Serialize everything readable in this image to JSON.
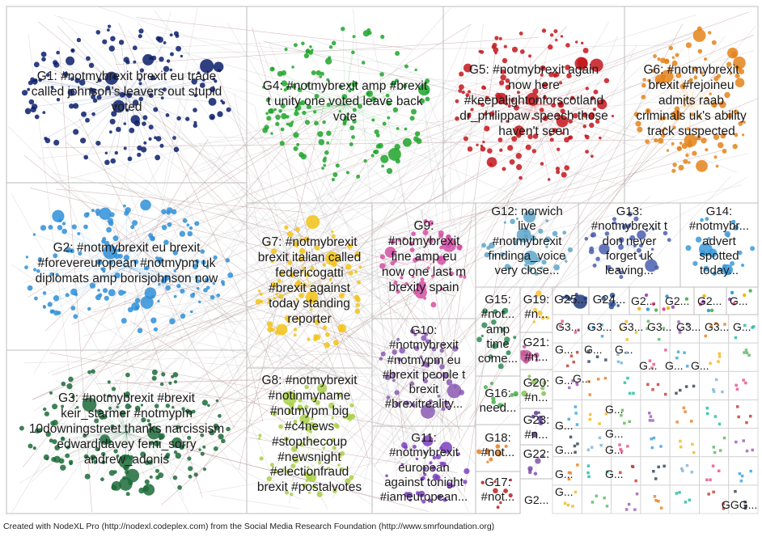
{
  "footer": "Created with NodeXL Pro (http://nodexl.codeplex.com) from the Social Media Research Foundation (http://www.smrfoundation.org)",
  "groups": [
    {
      "id": "G1",
      "label_lines": [
        "G1: #notmybrexit brexit eu trade",
        "called johnson's leavers out stupid",
        "voted"
      ],
      "color": "#0b1f6b"
    },
    {
      "id": "G2",
      "label_lines": [
        "G2: #notmybrexit eu brexit",
        "#forevereuropean #notmypm uk",
        "diplomats amp borisjohnson now"
      ],
      "color": "#2f8fd8"
    },
    {
      "id": "G3",
      "label_lines": [
        "G3: #notmybrexit #brexit",
        "keir_starmer #notmypm",
        "10downingstreet thanks narcissism",
        "edwardjdavey femi_sorry",
        "andrew_adonis"
      ],
      "color": "#1d6b3a"
    },
    {
      "id": "G4",
      "label_lines": [
        "G4: #notmybrexit amp #brexit",
        "t unity one voted leave back",
        "vote"
      ],
      "color": "#1fa52a"
    },
    {
      "id": "G5",
      "label_lines": [
        "G5: #notmybrexit again",
        "now here",
        "#keepalightonforscotland",
        "dr_philippaw speech those",
        "haven't seen"
      ],
      "color": "#c4161c"
    },
    {
      "id": "G6",
      "label_lines": [
        "G6: #notmybrexit",
        "brexit #rejoineu",
        "admits raab",
        "criminals uk's ability",
        "track suspected"
      ],
      "color": "#e5831a"
    },
    {
      "id": "G7",
      "label_lines": [
        "G7: #notmybrexit",
        "brexit italian called",
        "federicogatti",
        "#brexit against",
        "today standing",
        "reporter"
      ],
      "color": "#f2c318"
    },
    {
      "id": "G8",
      "label_lines": [
        "G8: #notmybrexit",
        "#notinmyname",
        "#notmypm big",
        "#c4news",
        "#stopthecoup",
        "#newsnight",
        "#electionfraud",
        "brexit #postalvotes"
      ],
      "color": "#a8d048"
    },
    {
      "id": "G9",
      "label_lines": [
        "G9:",
        "#notmybrexit",
        "fine amp eu",
        "now one last m",
        "brexity spain"
      ],
      "color": "#d64fa6"
    },
    {
      "id": "G10",
      "label_lines": [
        "G10:",
        "#notmybrexit",
        "#notmypm eu",
        "#brexit people t",
        "brexit",
        "#brexitreality..."
      ],
      "color": "#8a5ab3"
    },
    {
      "id": "G11",
      "label_lines": [
        "G11:",
        "#notmybrexit",
        "european",
        "against tonight",
        "#iameuropean..."
      ],
      "color": "#7b3fbf"
    },
    {
      "id": "G12",
      "label_lines": [
        "G12: norwich",
        "live",
        "#notmybrexit",
        "findinga_voice",
        "very close..."
      ],
      "color": "#5fa6c9"
    },
    {
      "id": "G13",
      "label_lines": [
        "G13:",
        "#notmybrexit t",
        "don never",
        "forget uk",
        "leaving..."
      ],
      "color": "#4a5fae"
    },
    {
      "id": "G14",
      "label_lines": [
        "G14:",
        "#notmybr...",
        "advert",
        "spotted",
        "today..."
      ],
      "color": "#3a9ad9"
    },
    {
      "id": "G15",
      "label_lines": [
        "G15:",
        "#not...",
        "amp",
        "time",
        "come..."
      ],
      "color": "#2e8b57"
    },
    {
      "id": "G16",
      "label_lines": [
        "G16:",
        "need..."
      ],
      "color": "#4caf50"
    },
    {
      "id": "G17",
      "label_lines": [
        "G17:",
        "#not..."
      ],
      "color": "#b22222"
    },
    {
      "id": "G18",
      "label_lines": [
        "G18:",
        "#not..."
      ],
      "color": "#e67e22"
    },
    {
      "id": "G19",
      "label_lines": [
        "G19:",
        "#n..."
      ],
      "color": "#f4c430"
    },
    {
      "id": "G20",
      "label_lines": [
        "G20:",
        "#n..."
      ],
      "color": "#88c057"
    },
    {
      "id": "G21",
      "label_lines": [
        "G21:",
        "#n..."
      ],
      "color": "#c9559b"
    },
    {
      "id": "G22",
      "label_lines": [
        "G22:"
      ],
      "color": "#7f52a8"
    },
    {
      "id": "G23",
      "label_lines": [
        "G23:",
        "#n..."
      ],
      "color": "#5e3d99"
    },
    {
      "id": "G24",
      "label_lines": [
        "G24..."
      ],
      "color": "#2c4f8f"
    },
    {
      "id": "G25",
      "label_lines": [
        "G25..."
      ],
      "color": "#1e3a7a"
    }
  ],
  "small_labels": [
    "G2...",
    "G2...",
    "G2...",
    "G...",
    "G3...",
    "G3...",
    "G3...",
    "G3...",
    "G3...",
    "G3...",
    "G...",
    "G...",
    "G...",
    "G...",
    "G...",
    "G...",
    "G...",
    "G...",
    "G...",
    "G...",
    "G...",
    "G...",
    "G...",
    "G...",
    "G...",
    "G...",
    "G...",
    "G2...",
    "GGG..."
  ]
}
